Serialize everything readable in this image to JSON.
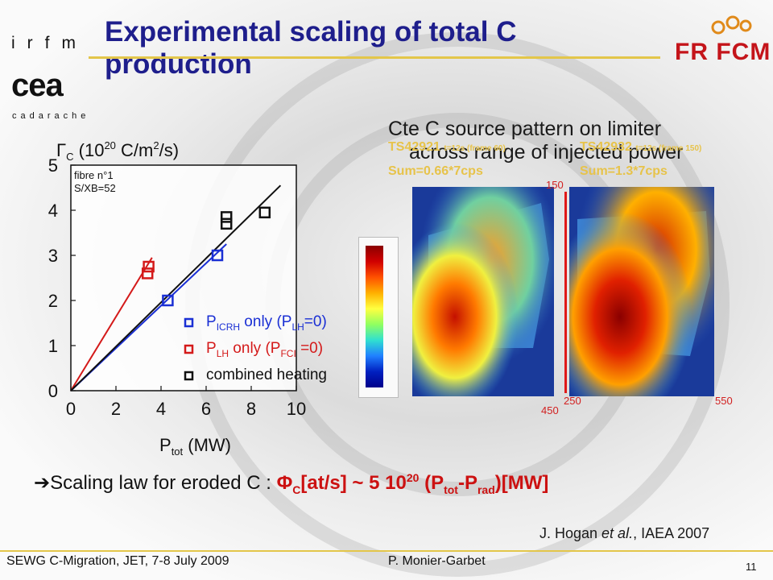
{
  "header": {
    "logo_irfm": "irfm",
    "logo_cea": "cea",
    "logo_cadarache": "cadarache",
    "title": "Experimental scaling of total C production",
    "logo_fr_fcm": "FR FCM"
  },
  "right_panel": {
    "subtitle_line1": "Cte C source pattern on limiter",
    "subtitle_line2": "across range of injected power",
    "shot_left": "TS42921",
    "shot_left_note": "t=12s (frame 60)",
    "shot_left_sum": "Sum=0.66*7cps",
    "shot_right": "TS42932",
    "shot_right_note": "t=12s (frame 150)",
    "shot_right_sum": "Sum=1.3*7cps",
    "label_150": "150",
    "label_450": "450",
    "label_250": "250",
    "label_550": "550"
  },
  "chart_data": {
    "type": "scatter",
    "ylabel": "ΓC (10^20 C/m²/s)",
    "xlabel": "Ptot (MW)",
    "xlim": [
      0,
      10
    ],
    "ylim": [
      0,
      5
    ],
    "xticks": [
      "0",
      "2",
      "4",
      "6",
      "8",
      "10"
    ],
    "yticks": [
      "0",
      "1",
      "2",
      "3",
      "4",
      "5"
    ],
    "annotation_line1": "fibre n°1",
    "annotation_line2": "S/XB=52",
    "series": [
      {
        "name": "PICRH only (PLH=0)",
        "color": "#1a2fd4",
        "points": [
          [
            4.3,
            2.0
          ],
          [
            6.5,
            3.0
          ]
        ],
        "fit": [
          [
            0,
            0
          ],
          [
            6.9,
            3.25
          ]
        ]
      },
      {
        "name": "PLH only (PFCI=0)",
        "color": "#d41a1a",
        "points": [
          [
            3.4,
            2.6
          ],
          [
            3.45,
            2.75
          ]
        ],
        "fit": [
          [
            0,
            0
          ],
          [
            3.6,
            2.95
          ]
        ]
      },
      {
        "name": "combined heating",
        "color": "#111111",
        "points": [
          [
            6.9,
            3.7
          ],
          [
            6.9,
            3.85
          ],
          [
            8.6,
            3.95
          ]
        ],
        "fit": [
          [
            0,
            0
          ],
          [
            9.3,
            4.55
          ]
        ]
      }
    ],
    "legend": [
      {
        "pre": "P",
        "sub": "ICRH",
        "mid": " only (P",
        "sub2": "LH",
        "post": "=0)",
        "color": "#1a2fd4"
      },
      {
        "pre": "P",
        "sub": "LH",
        "mid": " only (P",
        "sub2": "FCI",
        "post": " =0)",
        "color": "#d41a1a"
      },
      {
        "pre": "combined heating",
        "sub": "",
        "mid": "",
        "sub2": "",
        "post": "",
        "color": "#111111"
      }
    ]
  },
  "scaling": {
    "arrow": "Ø",
    "text": "Scaling law for eroded C : ",
    "formula": "ΦC[at/s] ~ 5 10^20 (Ptot-Prad)[MW]"
  },
  "citation": {
    "author": "J. Hogan ",
    "etal": "et al.",
    "venue": ", IAEA 2007"
  },
  "footer": {
    "left": "SEWG C-Migration, JET, 7-8 July 2009",
    "center": "P. Monier-Garbet",
    "page": "11"
  }
}
